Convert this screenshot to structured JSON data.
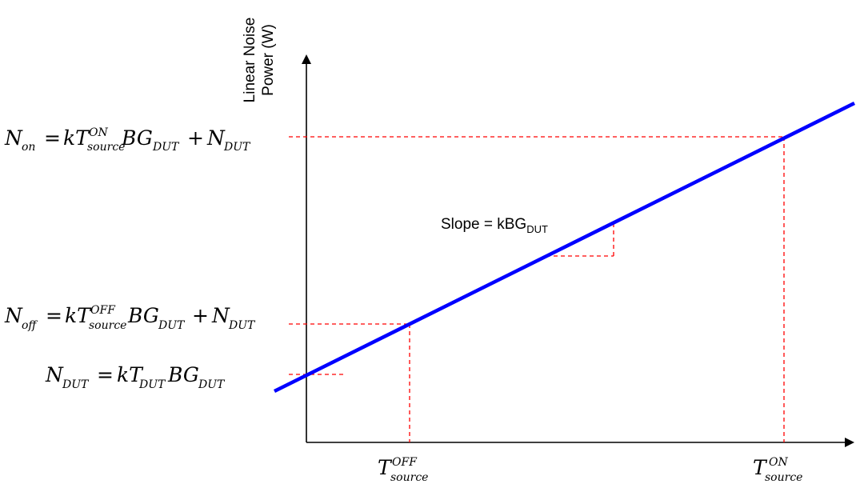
{
  "colors": {
    "line": "#0000ff",
    "guide": "#ff0000",
    "axis": "#000000"
  },
  "axes": {
    "y_label_line1": "Linear Noise",
    "y_label_line2": "Power (W)"
  },
  "slope_label": {
    "main": "Slope = kBG",
    "sub": "DUT"
  },
  "equations": {
    "n_on": {
      "lhs": "N",
      "lhs_sub": "on",
      "eq": "=",
      "k": "kT",
      "t_sup": "ON",
      "t_sub": "source",
      "bg": "BG",
      "bg_sub": "DUT",
      "plus": "+",
      "n": "N",
      "n_sub": "DUT"
    },
    "n_off": {
      "lhs": "N",
      "lhs_sub": "off",
      "eq": "=",
      "k": "kT",
      "t_sup": "OFF",
      "t_sub": "source",
      "bg": "BG",
      "bg_sub": "DUT",
      "plus": "+",
      "n": "N",
      "n_sub": "DUT"
    },
    "n_dut": {
      "lhs": "N",
      "lhs_sub": "DUT",
      "eq": "=",
      "k": "kT",
      "t_sub": "DUT",
      "bg": "BG",
      "bg_sub": "DUT"
    }
  },
  "x_ticks": {
    "t_off": {
      "t": "T",
      "sup": "OFF",
      "sub": "source"
    },
    "t_on": {
      "t": "T",
      "sup": "ON",
      "sub": "source"
    }
  }
}
